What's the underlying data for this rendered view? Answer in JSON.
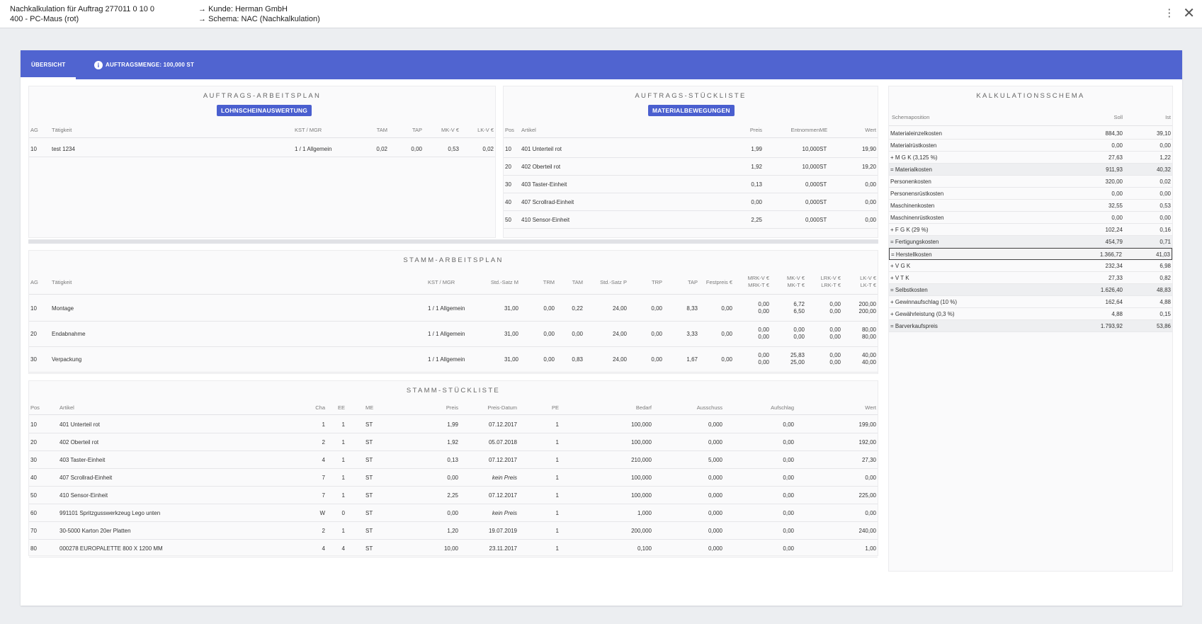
{
  "header": {
    "title_line1": "Nachkalkulation für Auftrag 277011 0 10 0",
    "title_line2": "400 - PC-Maus (rot)",
    "kunde": "Kunde: Herman GmbH",
    "schema": "Schema: NAC (Nachkalkulation)",
    "arrow": "→",
    "menu_icon": "⋮",
    "close_icon": "✕"
  },
  "tabs": {
    "overview": "ÜBERSICHT",
    "info_icon": "i",
    "order_qty": "AUFTRAGSMENGE: 100,000 ST"
  },
  "accent_color": "#5064d0",
  "auftrags_arbeitsplan": {
    "title": "AUFTRAGS-ARBEITSPLAN",
    "button": "LOHNSCHEINAUSWERTUNG",
    "headers": [
      "AG",
      "Tätigkeit",
      "KST / MGR",
      "TAM",
      "TAP",
      "MK-V €",
      "LK-V €"
    ],
    "rows": [
      [
        "10",
        "test 1234",
        "1 / 1 Allgemein",
        "0,02",
        "0,00",
        "0,53",
        "0,02"
      ]
    ]
  },
  "auftrags_stueckliste": {
    "title": "AUFTRAGS-STÜCKLISTE",
    "button": "MATERIALBEWEGUNGEN",
    "headers": [
      "Pos",
      "Artikel",
      "Preis",
      "Entnommen",
      "ME",
      "Wert"
    ],
    "rows": [
      [
        "10",
        "401  Unterteil rot",
        "1,99",
        "10,000",
        "ST",
        "19,90"
      ],
      [
        "20",
        "402  Oberteil rot",
        "1,92",
        "10,000",
        "ST",
        "19,20"
      ],
      [
        "30",
        "403  Taster-Einheit",
        "0,13",
        "0,000",
        "ST",
        "0,00"
      ],
      [
        "40",
        "407  Scrollrad-Einheit",
        "0,00",
        "0,000",
        "ST",
        "0,00"
      ],
      [
        "50",
        "410  Sensor-Einheit",
        "2,25",
        "0,000",
        "ST",
        "0,00"
      ]
    ]
  },
  "stamm_arbeitsplan": {
    "title": "STAMM-ARBEITSPLAN",
    "headers": [
      "AG",
      "Tätigkeit",
      "KST / MGR",
      "Std.-Satz M",
      "TRM",
      "TAM",
      "Std.-Satz P",
      "TRP",
      "TAP",
      "Festpreis €",
      "MRK-V €",
      "MRK-T €",
      "MK-V €",
      "MK-T €",
      "LRK-V €",
      "LRK-T €",
      "LK-V €",
      "LK-T €"
    ],
    "rows": [
      {
        "ag": "10",
        "taet": "Montage",
        "kst": "1 / 1 Allgemein",
        "ssm": "31,00",
        "trm": "0,00",
        "tam": "0,22",
        "ssp": "24,00",
        "trp": "0,00",
        "tap": "8,33",
        "fp": "0,00",
        "mrkv": "0,00",
        "mrkt": "0,00",
        "mkv": "6,72",
        "mkt": "6,50",
        "lrkv": "0,00",
        "lrkt": "0,00",
        "lkv": "200,00",
        "lkt": "200,00"
      },
      {
        "ag": "20",
        "taet": "Endabnahme",
        "kst": "1 / 1 Allgemein",
        "ssm": "31,00",
        "trm": "0,00",
        "tam": "0,00",
        "ssp": "24,00",
        "trp": "0,00",
        "tap": "3,33",
        "fp": "0,00",
        "mrkv": "0,00",
        "mrkt": "0,00",
        "mkv": "0,00",
        "mkt": "0,00",
        "lrkv": "0,00",
        "lrkt": "0,00",
        "lkv": "80,00",
        "lkt": "80,00"
      },
      {
        "ag": "30",
        "taet": "Verpackung",
        "kst": "1 / 1 Allgemein",
        "ssm": "31,00",
        "trm": "0,00",
        "tam": "0,83",
        "ssp": "24,00",
        "trp": "0,00",
        "tap": "1,67",
        "fp": "0,00",
        "mrkv": "0,00",
        "mrkt": "0,00",
        "mkv": "25,83",
        "mkt": "25,00",
        "lrkv": "0,00",
        "lrkt": "0,00",
        "lkv": "40,00",
        "lkt": "40,00"
      }
    ]
  },
  "stamm_stueckliste": {
    "title": "STAMM-STÜCKLISTE",
    "headers": [
      "Pos",
      "Artikel",
      "Cha",
      "EE",
      "ME",
      "Preis",
      "Preis-Datum",
      "PE",
      "Bedarf",
      "Ausschuss",
      "Aufschlag",
      "Wert"
    ],
    "rows": [
      [
        "10",
        "401  Unterteil rot",
        "1",
        "1",
        "ST",
        "1,99",
        "07.12.2017",
        "1",
        "100,000",
        "0,000",
        "0,00",
        "199,00"
      ],
      [
        "20",
        "402  Oberteil rot",
        "2",
        "1",
        "ST",
        "1,92",
        "05.07.2018",
        "1",
        "100,000",
        "0,000",
        "0,00",
        "192,00"
      ],
      [
        "30",
        "403  Taster-Einheit",
        "4",
        "1",
        "ST",
        "0,13",
        "07.12.2017",
        "1",
        "210,000",
        "5,000",
        "0,00",
        "27,30"
      ],
      [
        "40",
        "407  Scrollrad-Einheit",
        "7",
        "1",
        "ST",
        "0,00",
        "kein Preis",
        "1",
        "100,000",
        "0,000",
        "0,00",
        "0,00"
      ],
      [
        "50",
        "410  Sensor-Einheit",
        "7",
        "1",
        "ST",
        "2,25",
        "07.12.2017",
        "1",
        "100,000",
        "0,000",
        "0,00",
        "225,00"
      ],
      [
        "60",
        "991101  Spritzgusswerkzeug Lego unten",
        "W",
        "0",
        "ST",
        "0,00",
        "kein Preis",
        "1",
        "1,000",
        "0,000",
        "0,00",
        "0,00"
      ],
      [
        "70",
        "30-5000  Karton 20er Platten",
        "2",
        "1",
        "ST",
        "1,20",
        "19.07.2019",
        "1",
        "200,000",
        "0,000",
        "0,00",
        "240,00"
      ],
      [
        "80",
        "000278  EUROPALETTE 800 X 1200 MM",
        "4",
        "4",
        "ST",
        "10,00",
        "23.11.2017",
        "1",
        "0,100",
        "0,000",
        "0,00",
        "1,00"
      ]
    ]
  },
  "kalkulationsschema": {
    "title": "KALKULATIONSSCHEMA",
    "headers": [
      "Schemaposition",
      "Soll",
      "Ist"
    ],
    "rows": [
      {
        "name": "Materialeinzelkosten",
        "soll": "884,30",
        "ist": "39,10",
        "style": ""
      },
      {
        "name": "Materialrüstkosten",
        "soll": "0,00",
        "ist": "0,00",
        "style": ""
      },
      {
        "name": "+ M G K (3,125 %)",
        "soll": "27,63",
        "ist": "1,22",
        "style": ""
      },
      {
        "name": "= Materialkosten",
        "soll": "911,93",
        "ist": "40,32",
        "style": "hl"
      },
      {
        "name": "Personenkosten",
        "soll": "320,00",
        "ist": "0,02",
        "style": ""
      },
      {
        "name": "Personensrüstkosten",
        "soll": "0,00",
        "ist": "0,00",
        "style": ""
      },
      {
        "name": "Maschinenkosten",
        "soll": "32,55",
        "ist": "0,53",
        "style": ""
      },
      {
        "name": "Maschinenrüstkosten",
        "soll": "0,00",
        "ist": "0,00",
        "style": ""
      },
      {
        "name": "+ F G K (29 %)",
        "soll": "102,24",
        "ist": "0,16",
        "style": ""
      },
      {
        "name": "= Fertigungskosten",
        "soll": "454,79",
        "ist": "0,71",
        "style": "hl"
      },
      {
        "name": "= Herstellkosten",
        "soll": "1.366,72",
        "ist": "41,03",
        "style": "box"
      },
      {
        "name": "+ V G K",
        "soll": "232,34",
        "ist": "6,98",
        "style": ""
      },
      {
        "name": "+ V T K",
        "soll": "27,33",
        "ist": "0,82",
        "style": ""
      },
      {
        "name": "= Selbstkosten",
        "soll": "1.626,40",
        "ist": "48,83",
        "style": "hl"
      },
      {
        "name": "+ Gewinnaufschlag (10 %)",
        "soll": "162,64",
        "ist": "4,88",
        "style": ""
      },
      {
        "name": "+ Gewährleistung (0,3 %)",
        "soll": "4,88",
        "ist": "0,15",
        "style": ""
      },
      {
        "name": "= Barverkaufspreis",
        "soll": "1.793,92",
        "ist": "53,86",
        "style": "hl"
      }
    ]
  }
}
